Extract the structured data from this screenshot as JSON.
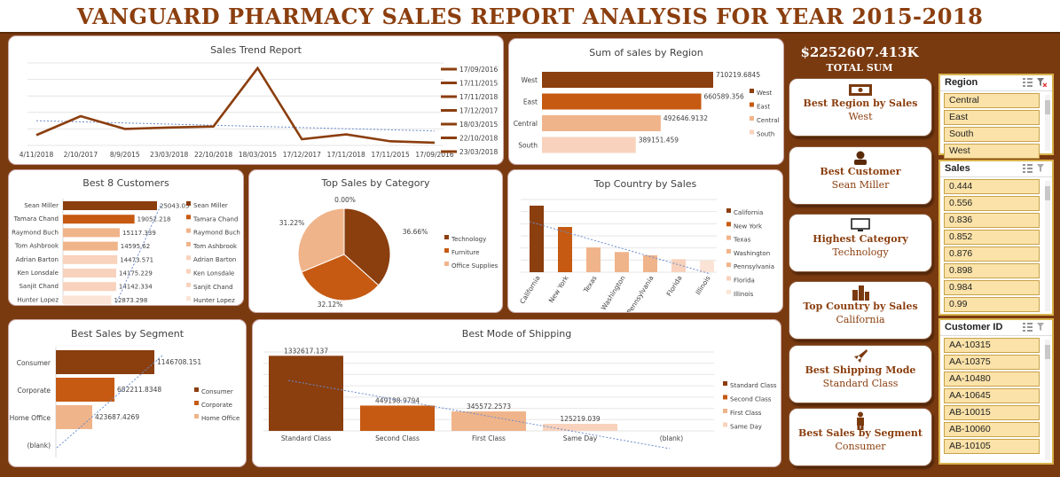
{
  "title": "VANGUARD PHARMACY SALES REPORT ANALYSIS FOR YEAR 2015-2018",
  "total": {
    "value": "$2252607.413K",
    "label": "TOTAL SUM"
  },
  "colors": {
    "dark": "#8b3e0e",
    "mid": "#c65a12",
    "light": "#f0b48a",
    "pale": "#f8d2bc",
    "palest": "#fbe4d6"
  },
  "cards": [
    {
      "title": "Best Region by Sales",
      "value": "West",
      "icon": "money-icon"
    },
    {
      "title": "Best Customer",
      "value": "Sean Miller",
      "icon": "person-icon"
    },
    {
      "title": "Highest Category",
      "value": "Technology",
      "icon": "monitor-icon"
    },
    {
      "title": "Top Country by Sales",
      "value": "California",
      "icon": "buildings-icon"
    },
    {
      "title": "Best Shipping Mode",
      "value": "Standard Class",
      "icon": "rocket-icon"
    },
    {
      "title": "Best Sales by Segment",
      "value": "Consumer",
      "icon": "user-icon"
    }
  ],
  "slicers": {
    "region": {
      "header": "Region",
      "items": [
        "Central",
        "East",
        "South",
        "West"
      ]
    },
    "sales": {
      "header": "Sales",
      "items": [
        "0.444",
        "0.556",
        "0.836",
        "0.852",
        "0.876",
        "0.898",
        "0.984",
        "0.99"
      ]
    },
    "customer": {
      "header": "Customer ID",
      "items": [
        "AA-10315",
        "AA-10375",
        "AA-10480",
        "AA-10645",
        "AB-10015",
        "AB-10060",
        "AB-10105"
      ]
    }
  },
  "chart_data": [
    {
      "id": "trend",
      "type": "line",
      "title": "Sales Trend Report",
      "categories": [
        "4/11/2018",
        "2/10/2017",
        "8/9/2015",
        "23/03/2018",
        "22/10/2018",
        "18/03/2015",
        "17/12/2017",
        "17/11/2018",
        "17/11/2015",
        "17/09/2016"
      ],
      "values": [
        3.0,
        8.5,
        4.8,
        5.2,
        5.5,
        22.5,
        1.8,
        3.2,
        1.2,
        0.8
      ],
      "legend": [
        "17/09/2016",
        "17/11/2015",
        "17/11/2018",
        "17/12/2017",
        "18/03/2015",
        "22/10/2018",
        "23/03/2018"
      ],
      "grid": true,
      "trendline": true,
      "legend_position": "right"
    },
    {
      "id": "region",
      "type": "bar",
      "orientation": "horizontal",
      "title": "Sum of sales by Region",
      "categories": [
        "West",
        "East",
        "Central",
        "South"
      ],
      "values": [
        710219.6845,
        660589.356,
        492646.9132,
        389151.459
      ],
      "labels": [
        "710219.6845",
        "660589.356",
        "492646.9132",
        "389151.459"
      ],
      "legend": [
        "West",
        "East",
        "Central",
        "South"
      ],
      "legend_position": "right"
    },
    {
      "id": "customers",
      "type": "bar",
      "orientation": "horizontal",
      "title": "Best 8 Customers",
      "categories": [
        "Sean Miller",
        "Tamara Chand",
        "Raymond Buch",
        "Tom Ashbrook",
        "Adrian Barton",
        "Ken Lonsdale",
        "Sanjit Chand",
        "Hunter Lopez"
      ],
      "values": [
        25043.05,
        19052.218,
        15117.339,
        14595.62,
        14473.571,
        14175.229,
        14142.334,
        12873.298
      ],
      "labels": [
        "25043.05",
        "19052.218",
        "15117.339",
        "14595.62",
        "14473.571",
        "14175.229",
        "14142.334",
        "12873.298"
      ],
      "legend": [
        "Sean Miller",
        "Tamara Chand",
        "Raymond Buch",
        "Tom Ashbrook",
        "Adrian Barton",
        "Ken Lonsdale",
        "Sanjit Chand",
        "Hunter Lopez"
      ],
      "legend_position": "right"
    },
    {
      "id": "category",
      "type": "pie",
      "title": "Top Sales by Category",
      "categories": [
        "Technology",
        "Furniture",
        "Office Supplies",
        "(blank)"
      ],
      "values": [
        36.66,
        32.12,
        31.22,
        0.0
      ],
      "labels": [
        "36.66%",
        "32.12%",
        "31.22%",
        "0.00%"
      ],
      "legend": [
        "Technology",
        "Furniture",
        "Office Supplies"
      ],
      "legend_position": "right"
    },
    {
      "id": "country",
      "type": "bar",
      "title": "Top Country by Sales",
      "categories": [
        "California",
        "New York",
        "Texas",
        "Washington",
        "Pennsylvania",
        "Florida",
        "Illinois"
      ],
      "values": [
        457688,
        310876,
        170188,
        138641,
        116512,
        89474,
        80166
      ],
      "legend": [
        "California",
        "New York",
        "Texas",
        "Washington",
        "Pennsylvania",
        "Florida",
        "Illinois"
      ],
      "ylim": [
        0,
        500000
      ],
      "legend_position": "right",
      "trendline": true
    },
    {
      "id": "segment",
      "type": "bar",
      "orientation": "horizontal",
      "title": "Best Sales by Segment",
      "categories": [
        "Consumer",
        "Corporate",
        "Home Office",
        "(blank)"
      ],
      "values": [
        1146708.151,
        682211.8348,
        423687.4269,
        0
      ],
      "labels": [
        "1146708.151",
        "682211.8348",
        "423687.4269",
        ""
      ],
      "legend": [
        "Consumer",
        "Corporate",
        "Home Office"
      ],
      "legend_position": "right",
      "trendline": true
    },
    {
      "id": "shipping",
      "type": "bar",
      "title": "Best Mode of Shipping",
      "categories": [
        "Standard Class",
        "Second Class",
        "First Class",
        "Same Day",
        "(blank)"
      ],
      "values": [
        1332617.137,
        449198.9794,
        345572.2573,
        125219.039,
        0
      ],
      "labels": [
        "1332617.137",
        "449198.9794",
        "345572.2573",
        "125219.039",
        ""
      ],
      "legend": [
        "Standard Class",
        "Second Class",
        "First Class",
        "Same Day"
      ],
      "ylim": [
        0,
        1400000
      ],
      "legend_position": "right",
      "trendline": true
    }
  ]
}
